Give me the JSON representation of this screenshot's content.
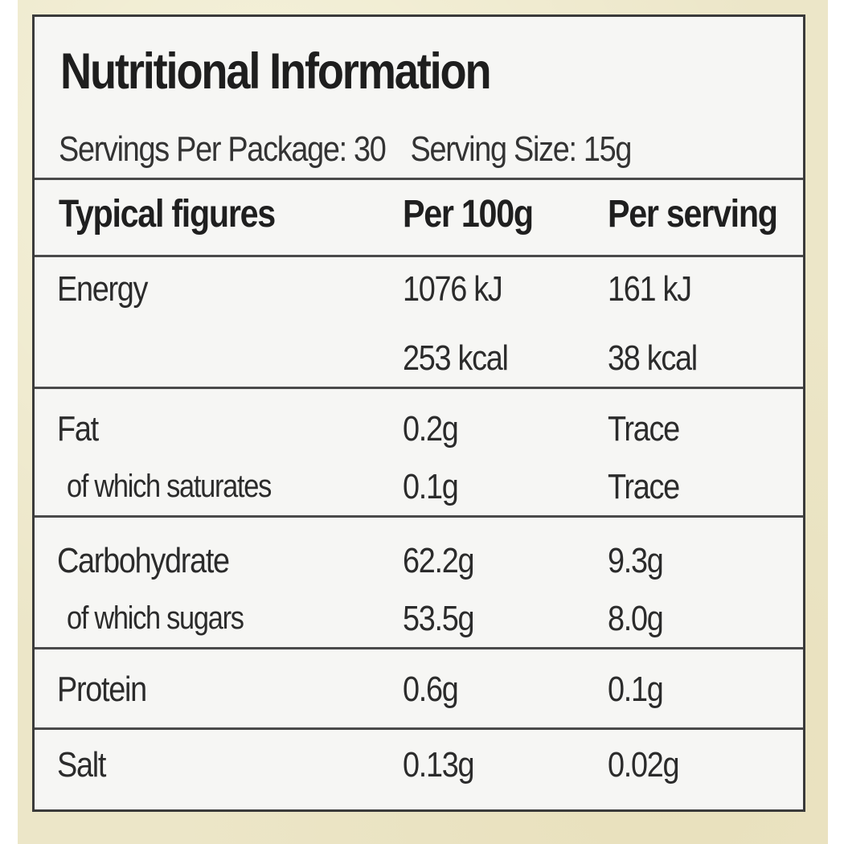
{
  "title": "Nutritional Information",
  "servings_per_package": "Servings Per Package: 30",
  "serving_size": "Serving Size: 15g",
  "headers": [
    "Typical figures",
    "Per 100g",
    "Per serving"
  ],
  "rows": [
    {
      "name": "Energy",
      "per100": "1076 kJ",
      "perServing": "161 kJ"
    },
    {
      "name": "",
      "per100": "253 kcal",
      "perServing": "38 kcal"
    },
    {
      "name": "Fat",
      "per100": "0.2g",
      "perServing": "Trace"
    },
    {
      "name": "of which saturates",
      "per100": "0.1g",
      "perServing": "Trace"
    },
    {
      "name": "Carbohydrate",
      "per100": "62.2g",
      "perServing": "9.3g"
    },
    {
      "name": "of which sugars",
      "per100": "53.5g",
      "perServing": "8.0g"
    },
    {
      "name": "Protein",
      "per100": "0.6g",
      "perServing": "0.1g"
    },
    {
      "name": "Salt",
      "per100": "0.13g",
      "perServing": "0.02g"
    }
  ]
}
